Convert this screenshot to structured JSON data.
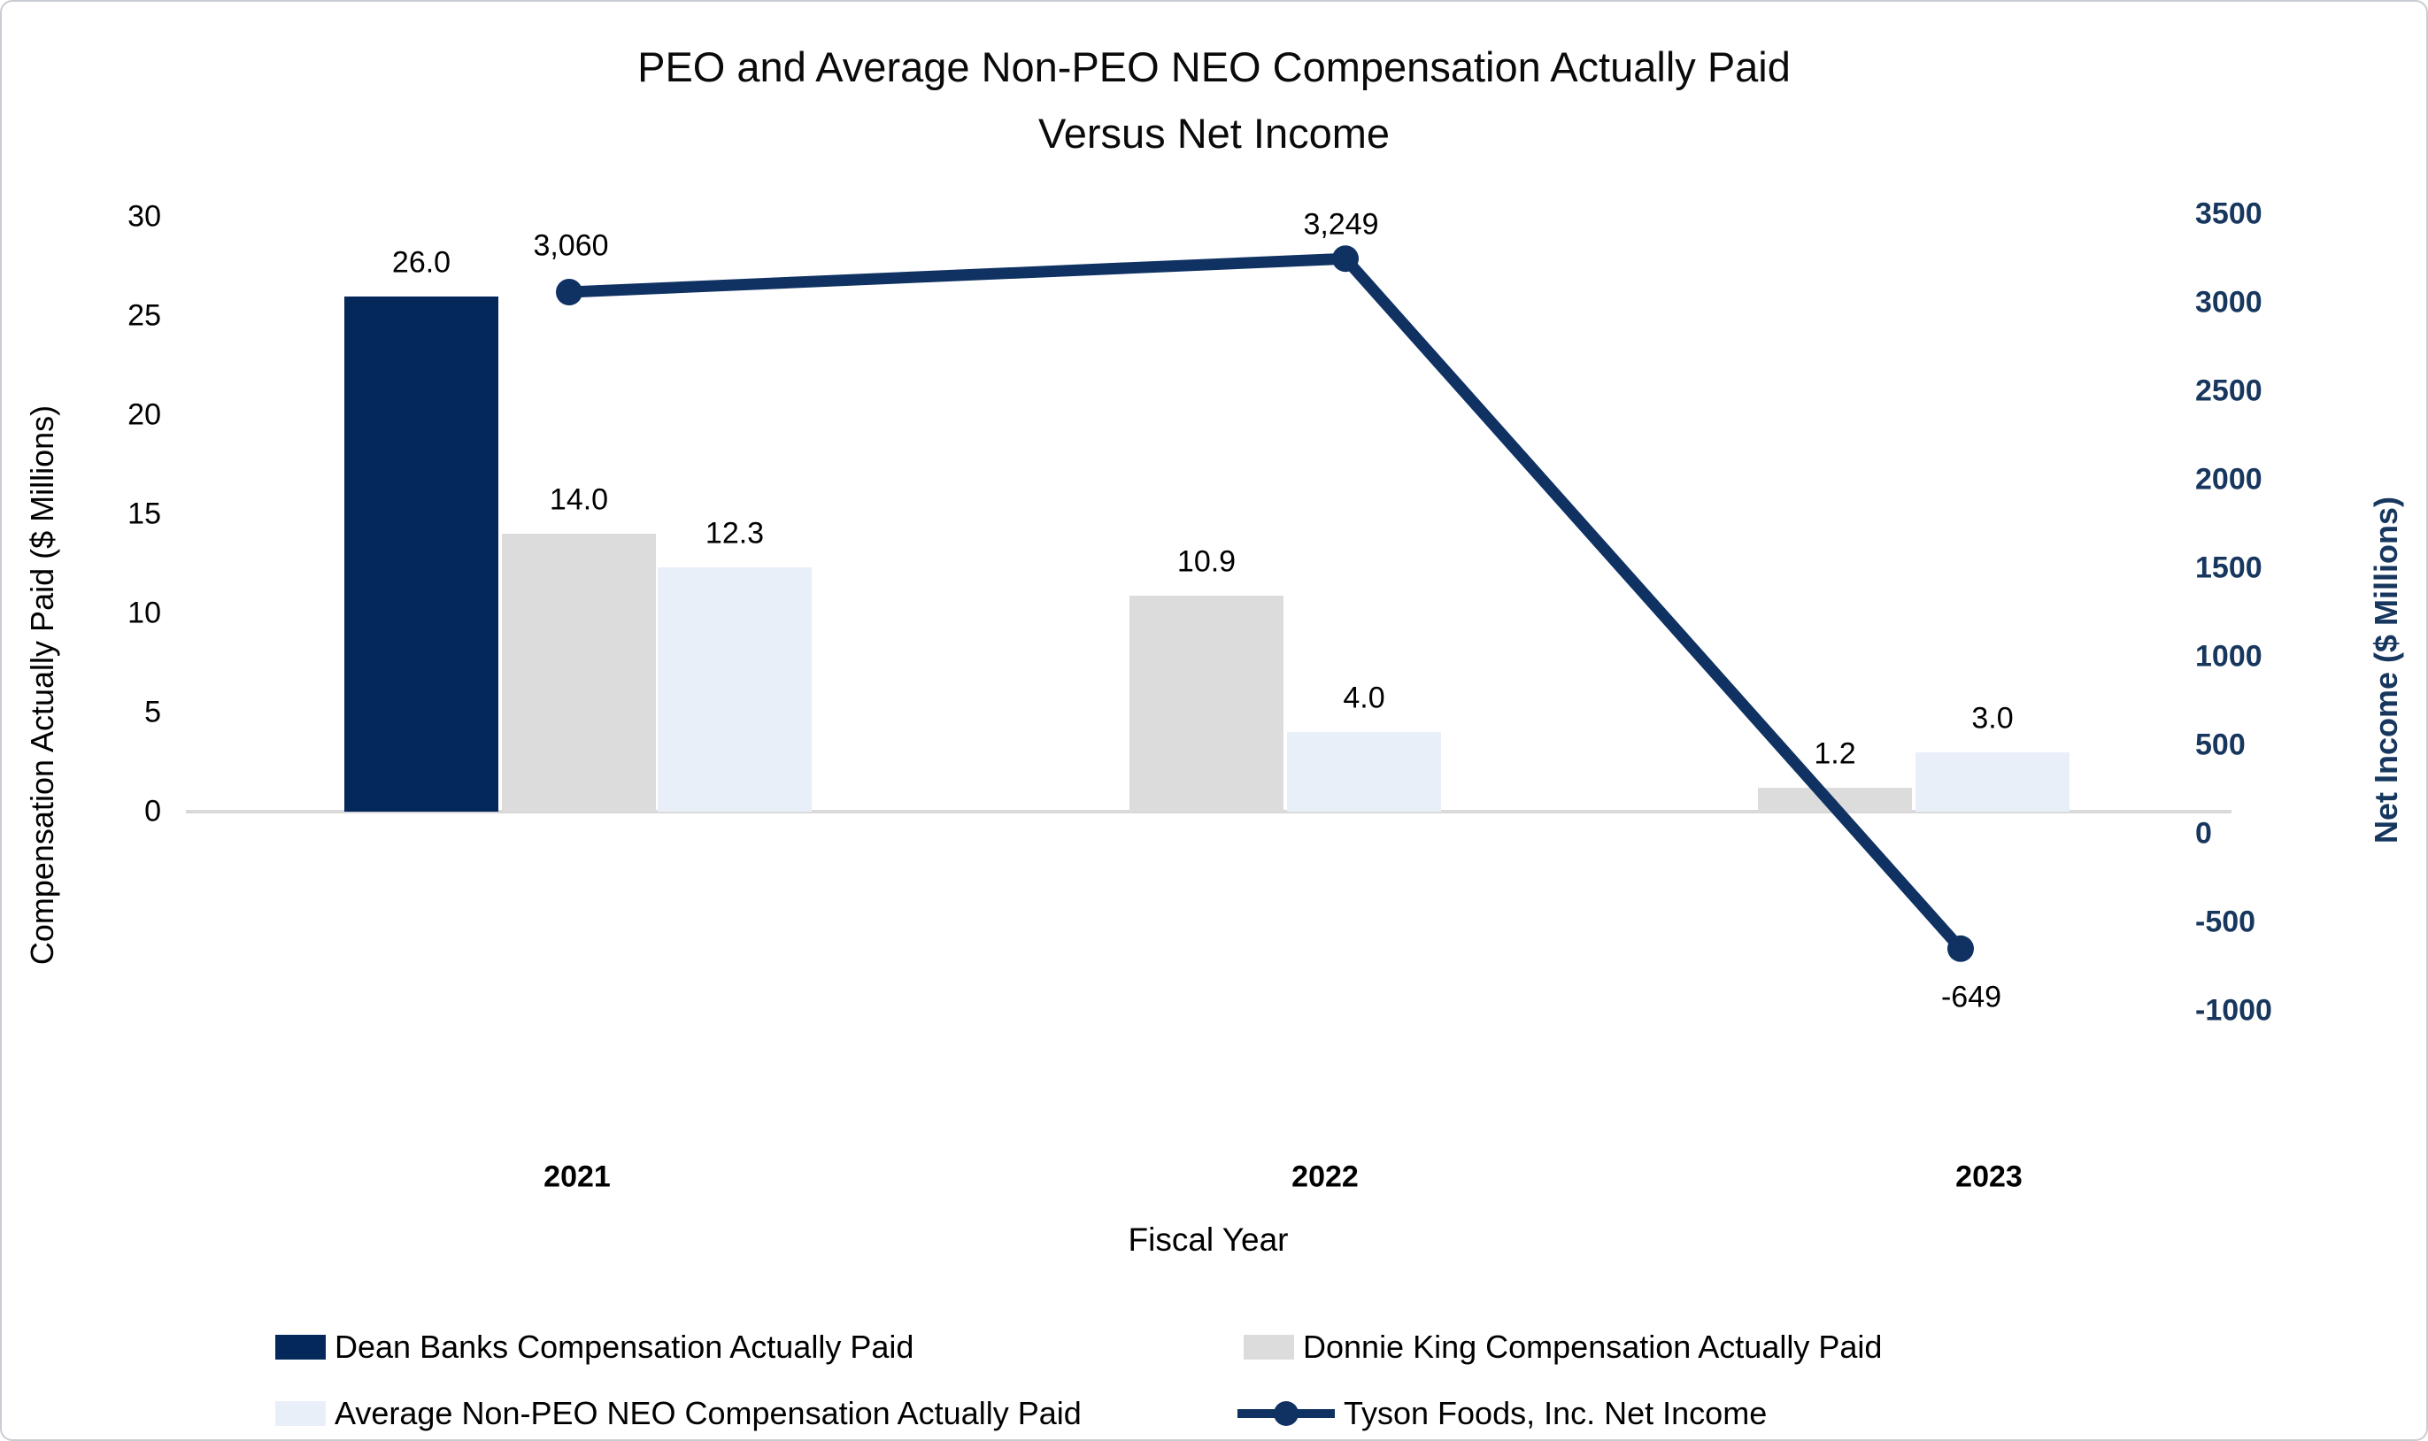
{
  "chart_data": {
    "type": "combo-bar-line",
    "title": "PEO and Average Non-PEO NEO Compensation Actually Paid Versus Net Income",
    "title_lines": [
      "PEO and Average Non-PEO NEO Compensation Actually Paid",
      "Versus Net Income"
    ],
    "categories": [
      "2021",
      "2022",
      "2023"
    ],
    "series": [
      {
        "name": "Dean Banks Compensation Actually Paid",
        "type": "bar",
        "axis": "left",
        "color": "#04285A",
        "values": [
          26.0,
          null,
          null
        ],
        "labels": [
          "26.0",
          null,
          null
        ]
      },
      {
        "name": "Donnie King Compensation Actually Paid",
        "type": "bar",
        "axis": "left",
        "color": "#DCDCDC",
        "values": [
          14.0,
          10.9,
          1.2
        ],
        "labels": [
          "14.0",
          "10.9",
          "1.2"
        ]
      },
      {
        "name": "Average Non-PEO NEO Compensation Actually Paid",
        "type": "bar",
        "axis": "left",
        "color": "#E9EFF9",
        "values": [
          12.3,
          4.0,
          3.0
        ],
        "labels": [
          "12.3",
          "4.0",
          "3.0"
        ]
      },
      {
        "name": "Tyson Foods, Inc. Net Income",
        "type": "line",
        "axis": "right",
        "color": "#0F3263",
        "values": [
          3060,
          3249,
          -649
        ],
        "labels": [
          "3,060",
          "3,249",
          "-649"
        ]
      }
    ],
    "xlabel": "Fiscal Year",
    "y_left": {
      "label": "Compensation Actually Paid ($ Millions)",
      "ticks": [
        "30",
        "25",
        "20",
        "15",
        "10",
        "5",
        "0"
      ],
      "tick_values": [
        30,
        25,
        20,
        15,
        10,
        5,
        0
      ],
      "axis_max": 30,
      "axis_zero": 0
    },
    "y_right": {
      "label": "Net Income ($ Millions)",
      "ticks": [
        "3500",
        "3000",
        "2500",
        "2000",
        "1500",
        "1000",
        "500",
        "0",
        "-500",
        "-1000"
      ],
      "tick_values": [
        3500,
        3000,
        2500,
        2000,
        1500,
        1000,
        500,
        0,
        -500,
        -1000
      ],
      "text_color": "#17375E"
    },
    "grid": false,
    "zero_line_color": "#D9D9D9",
    "legend_position": "bottom"
  }
}
